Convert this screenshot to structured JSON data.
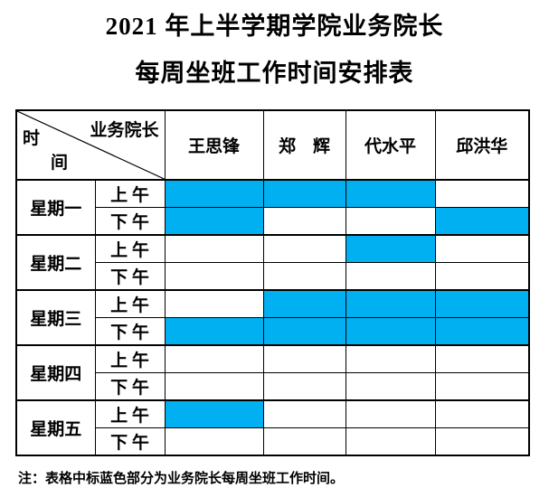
{
  "title": {
    "line1": "2021 年上半学期学院业务院长",
    "line2": "每周坐班工作时间安排表"
  },
  "table": {
    "corner": {
      "manager_label": "业务院长",
      "time_top_char": "时",
      "time_bottom_char": "间"
    },
    "deans": [
      "王思锋",
      "郑　辉",
      "代水平",
      "邱洪华"
    ],
    "period_labels": {
      "am": "上 午",
      "pm": "下 午"
    },
    "days": [
      {
        "label": "星期一",
        "am": [
          true,
          true,
          true,
          false
        ],
        "pm": [
          true,
          false,
          false,
          true
        ]
      },
      {
        "label": "星期二",
        "am": [
          false,
          false,
          true,
          false
        ],
        "pm": [
          false,
          false,
          false,
          false
        ]
      },
      {
        "label": "星期三",
        "am": [
          false,
          true,
          true,
          true
        ],
        "pm": [
          true,
          true,
          true,
          true
        ]
      },
      {
        "label": "星期四",
        "am": [
          false,
          false,
          false,
          false
        ],
        "pm": [
          false,
          false,
          false,
          false
        ]
      },
      {
        "label": "星期五",
        "am": [
          true,
          false,
          false,
          false
        ],
        "pm": [
          false,
          false,
          false,
          false
        ]
      }
    ]
  },
  "note": "注：表格中标蓝色部分为业务院长每周坐班工作时间。",
  "colors": {
    "highlight": "#00B0F0",
    "border": "#000000",
    "page_background": "#FFFFFF"
  }
}
